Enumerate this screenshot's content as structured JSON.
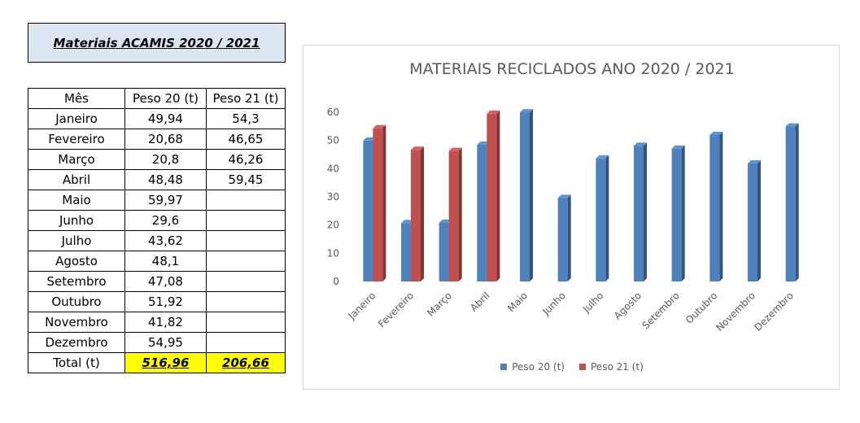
{
  "table": {
    "title": "Materiais ACAMIS 2020 / 2021",
    "headers": [
      "Mês",
      "Peso 20 (t)",
      "Peso 21 (t)"
    ],
    "rows": [
      [
        "Janeiro",
        "49,94",
        "54,3"
      ],
      [
        "Fevereiro",
        "20,68",
        "46,65"
      ],
      [
        "Março",
        "20,8",
        "46,26"
      ],
      [
        "Abril",
        "48,48",
        "59,45"
      ],
      [
        "Maio",
        "59,97",
        ""
      ],
      [
        "Junho",
        "29,6",
        ""
      ],
      [
        "Julho",
        "43,62",
        ""
      ],
      [
        "Agosto",
        "48,1",
        ""
      ],
      [
        "Setembro",
        "47,08",
        ""
      ],
      [
        "Outubro",
        "51,92",
        ""
      ],
      [
        "Novembro",
        "41,82",
        ""
      ],
      [
        "Dezembro",
        "54,95",
        ""
      ]
    ],
    "total": [
      "Total (t)",
      "516,96",
      "206,66"
    ],
    "highlight_color": "#ffff00"
  },
  "chart_data": {
    "type": "bar",
    "title": "MATERIAIS RECICLADOS ANO 2020 / 2021",
    "categories": [
      "Janeiro",
      "Fevereiro",
      "Março",
      "Abril",
      "Maio",
      "Junho",
      "Julho",
      "Agosto",
      "Setembro",
      "Outubro",
      "Novembro",
      "Dezembro"
    ],
    "series": [
      {
        "name": "Peso 20 (t)",
        "color": "#4f81bd",
        "values": [
          49.94,
          20.68,
          20.8,
          48.48,
          59.97,
          29.6,
          43.62,
          48.1,
          47.08,
          51.92,
          41.82,
          54.95
        ]
      },
      {
        "name": "Peso 21 (t)",
        "color": "#c0504d",
        "values": [
          54.3,
          46.65,
          46.26,
          59.45,
          null,
          null,
          null,
          null,
          null,
          null,
          null,
          null
        ]
      }
    ],
    "ylim": [
      0,
      60
    ],
    "yticks": [
      0,
      10,
      20,
      30,
      40,
      50,
      60
    ],
    "legend_position": "bottom",
    "grid": false
  }
}
